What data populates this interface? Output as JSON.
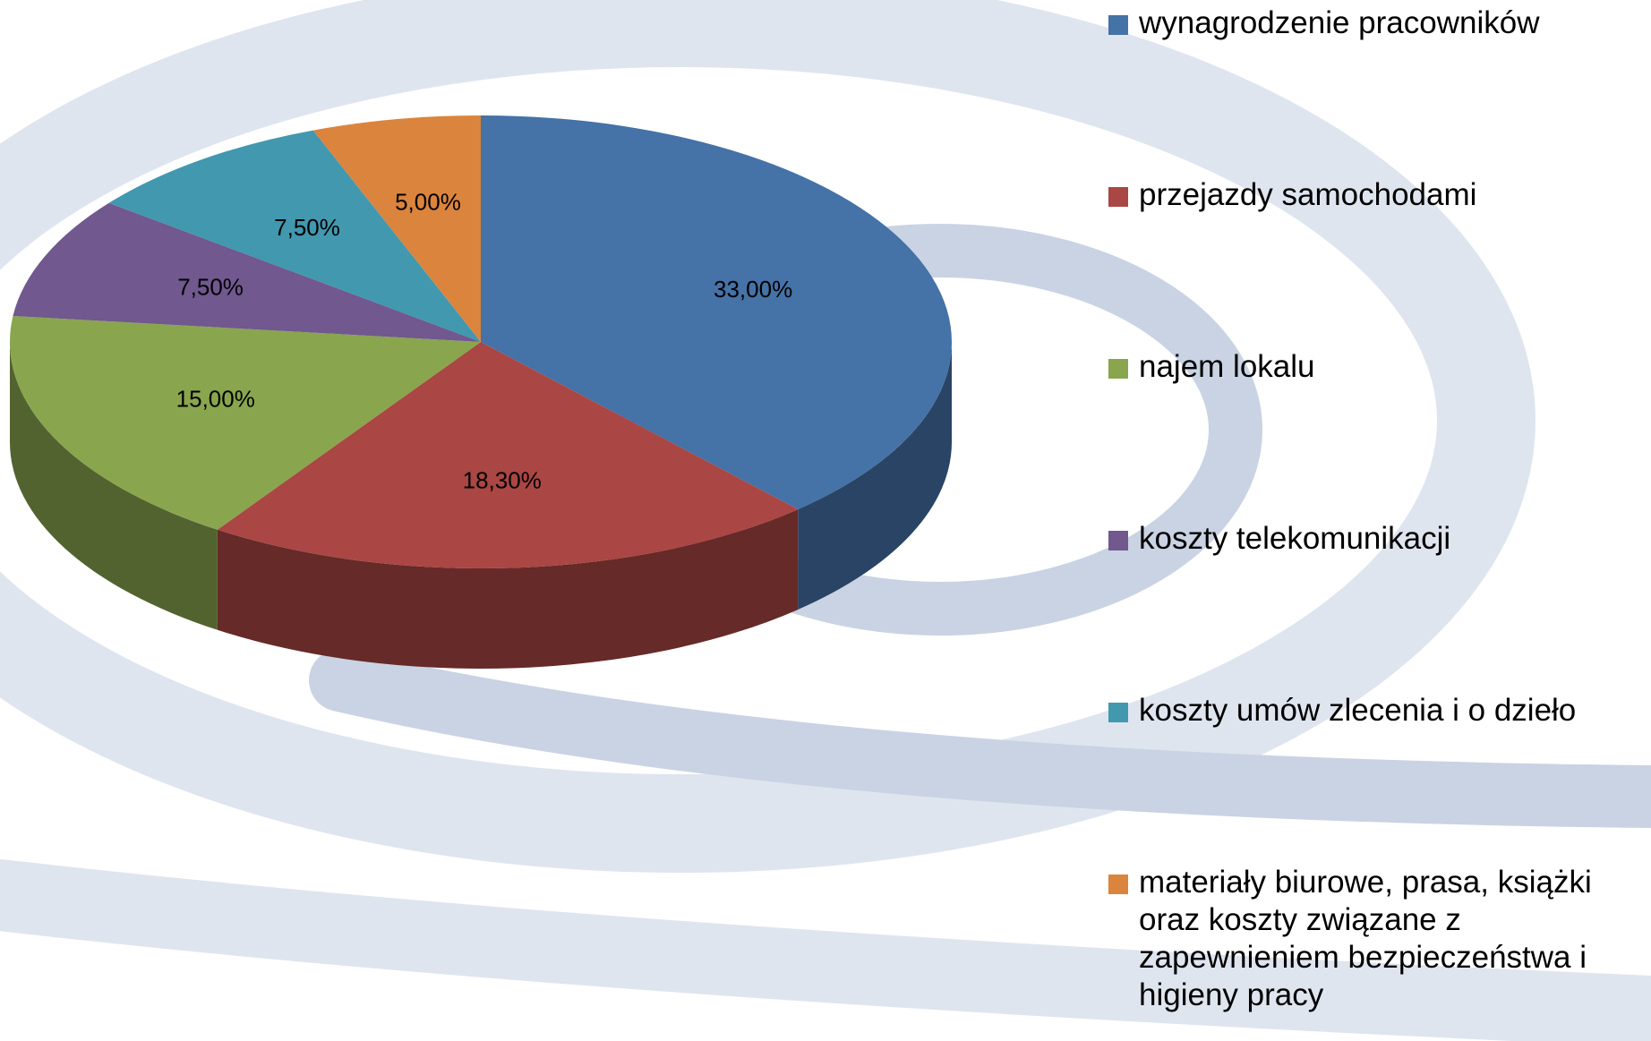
{
  "chart_data": {
    "type": "pie3d",
    "categories": [
      "wynagrodzenie pracowników",
      "przejazdy samochodami",
      "najem lokalu",
      "koszty telekomunikacji",
      "koszty umów zlecenia i o dzieło",
      "materiały biurowe, prasa, książki oraz koszty związane z zapewnieniem bezpieczeństwa i higieny pracy"
    ],
    "values": [
      33,
      18.3,
      15,
      7.5,
      7.5,
      5
    ],
    "value_labels": [
      "33,00%",
      "18,30%",
      "15,00%",
      "7,50%",
      "7,50%",
      "5,00%"
    ],
    "colors": [
      "#4572a7",
      "#aa4643",
      "#89a54e",
      "#71588f",
      "#4198af",
      "#db843d"
    ],
    "legend": "right"
  }
}
